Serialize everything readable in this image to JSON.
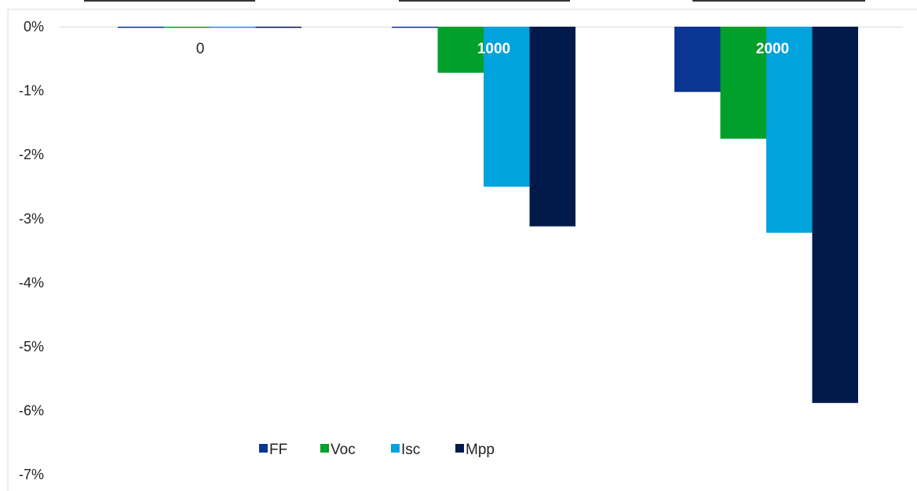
{
  "chart_data": {
    "type": "bar",
    "categories": [
      "0",
      "1000",
      "2000"
    ],
    "category_label_colors": [
      "#222222",
      "#ffffff",
      "#ffffff"
    ],
    "series": [
      {
        "name": "FF",
        "color": "#0a3592",
        "values": [
          0,
          0,
          -1.02
        ]
      },
      {
        "name": "Voc",
        "color": "#00a02a",
        "values": [
          0,
          -0.72,
          -1.75
        ]
      },
      {
        "name": "Isc",
        "color": "#00a3dc",
        "values": [
          0,
          -2.5,
          -3.22
        ]
      },
      {
        "name": "Mpp",
        "color": "#021a4a",
        "values": [
          0,
          -3.12,
          -5.88
        ]
      }
    ],
    "y_ticks": [
      "0%",
      "-1%",
      "-2%",
      "-3%",
      "-4%",
      "-5%",
      "-6%",
      "-7%"
    ],
    "ylim": [
      -7,
      0
    ],
    "y_unit": "%",
    "grid": false,
    "legend_position": "bottom-left"
  }
}
